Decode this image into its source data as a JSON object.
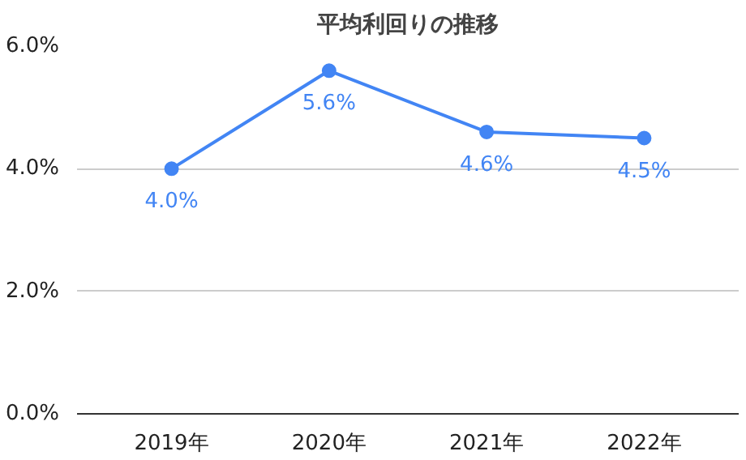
{
  "chart_data": {
    "type": "line",
    "title": "平均利回りの推移",
    "categories": [
      "2019年",
      "2020年",
      "2021年",
      "2022年"
    ],
    "series": [
      {
        "color": "#4285f4",
        "values": [
          4.0,
          5.6,
          4.6,
          4.5
        ],
        "value_labels": [
          "4.0%",
          "5.6%",
          "4.6%",
          "4.5%"
        ]
      }
    ],
    "ylim": [
      0,
      6
    ],
    "yticks": [
      {
        "value": 0,
        "label": "0.0%"
      },
      {
        "value": 2,
        "label": "2.0%"
      },
      {
        "value": 4,
        "label": "4.0%"
      },
      {
        "value": 6,
        "label": "6.0%"
      }
    ],
    "grid": "y",
    "marker": "circle",
    "line_style": "solid"
  }
}
